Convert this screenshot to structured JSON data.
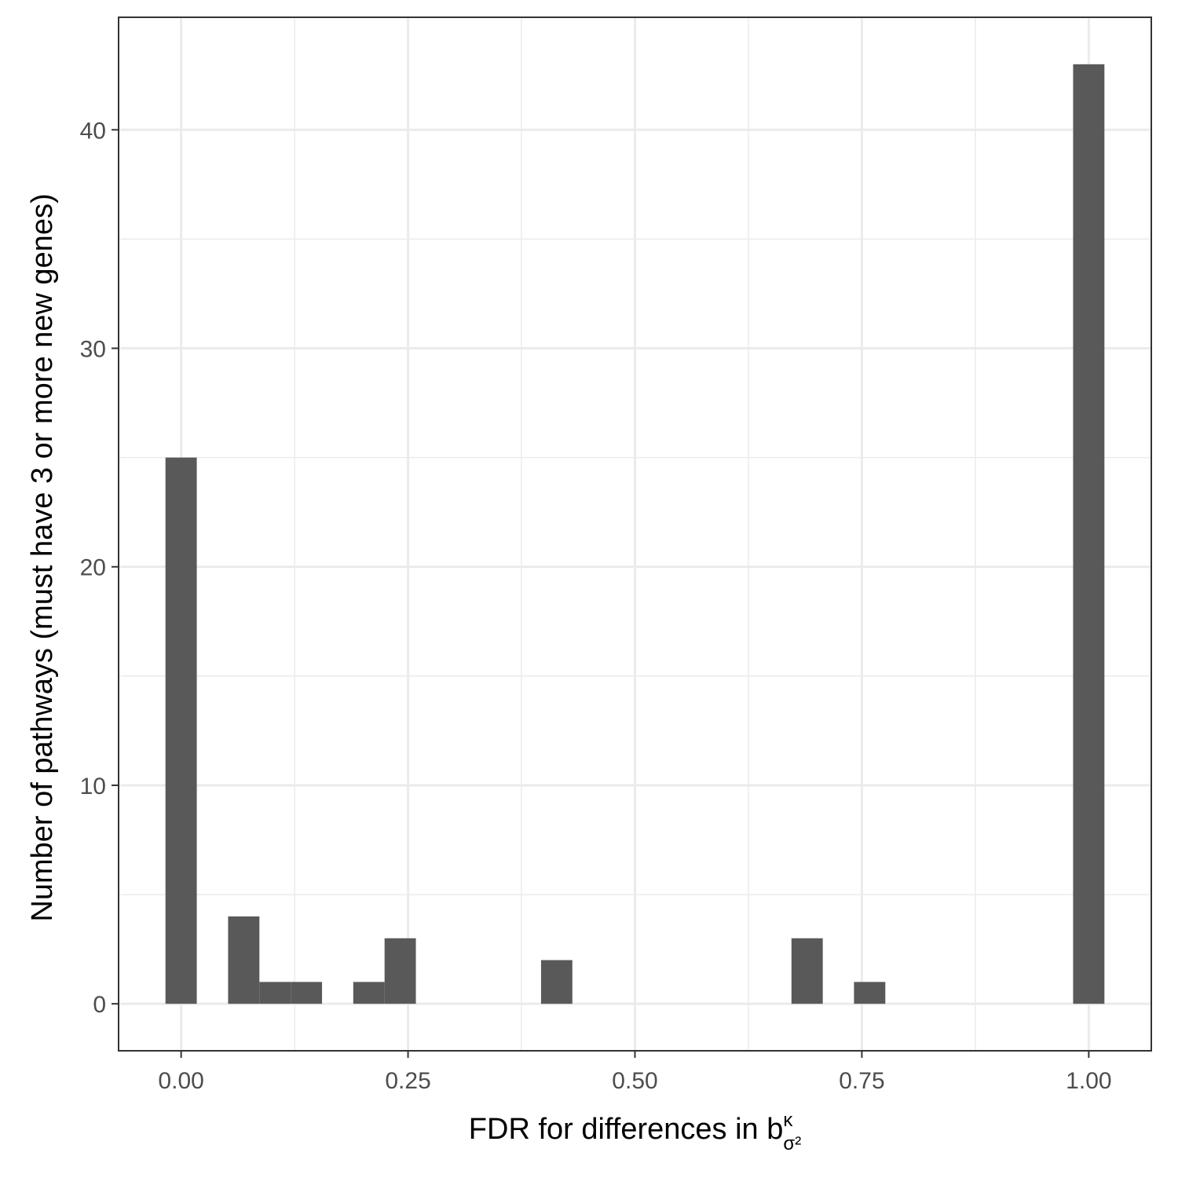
{
  "chart_data": {
    "type": "bar",
    "xlabel": "FDR for differences in b",
    "xlabel_sup": "κ",
    "xlabel_sub": "σ²",
    "ylabel": "Number of pathways (must have 3 or more new genes)",
    "xlim": [
      -0.0689,
      1.0689
    ],
    "ylim": [
      -2.15,
      45.15
    ],
    "x_ticks": [
      0,
      0.25,
      0.5,
      0.75,
      1
    ],
    "x_tick_labels": [
      "0.00",
      "0.25",
      "0.50",
      "0.75",
      "1.00"
    ],
    "x_minor_ticks": [
      0.125,
      0.375,
      0.625,
      0.875
    ],
    "y_ticks": [
      0,
      10,
      20,
      30,
      40
    ],
    "y_tick_labels": [
      "0",
      "10",
      "20",
      "30",
      "40"
    ],
    "y_minor_ticks": [
      5,
      15,
      25,
      35
    ],
    "bin_width": 0.0345,
    "bins": [
      {
        "x": 0.0,
        "count": 25
      },
      {
        "x": 0.069,
        "count": 4
      },
      {
        "x": 0.1035,
        "count": 1
      },
      {
        "x": 0.138,
        "count": 1
      },
      {
        "x": 0.2069,
        "count": 1
      },
      {
        "x": 0.2414,
        "count": 3
      },
      {
        "x": 0.4138,
        "count": 2
      },
      {
        "x": 0.6897,
        "count": 3
      },
      {
        "x": 0.7586,
        "count": 1
      },
      {
        "x": 1.0,
        "count": 43
      }
    ],
    "bar_color": "#595959",
    "grid": true,
    "panel_border_color": "#333333"
  }
}
